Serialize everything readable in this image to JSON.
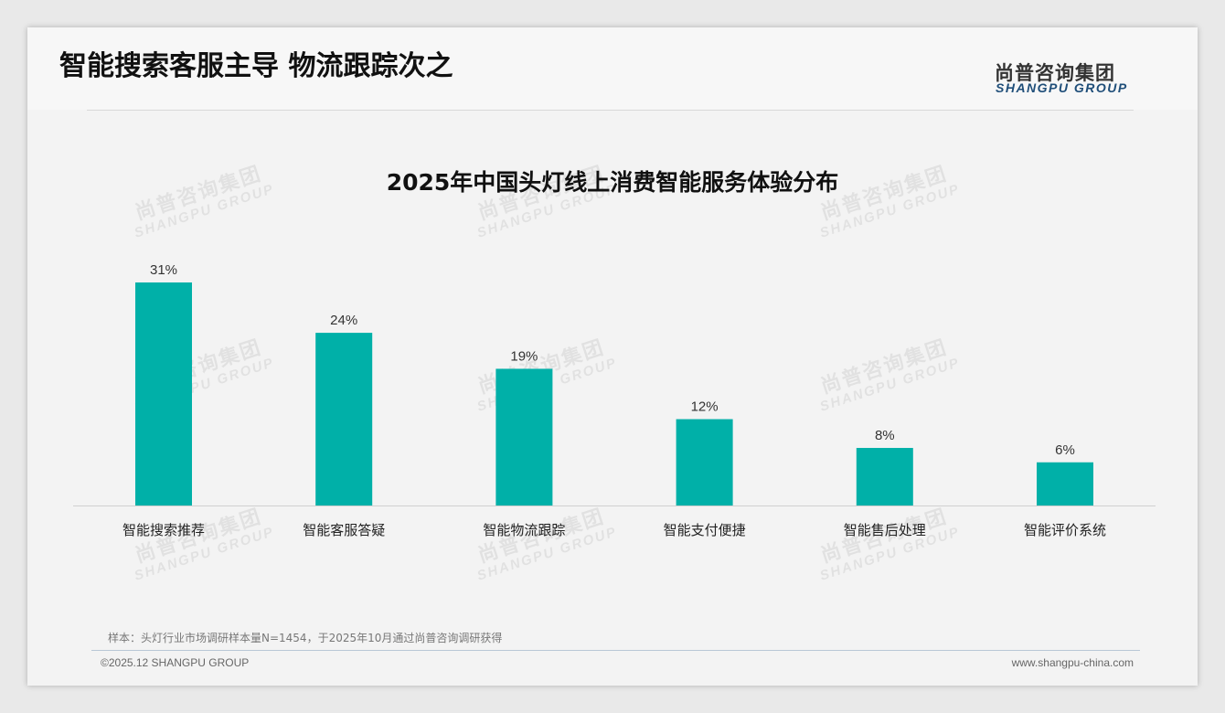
{
  "page_title": "智能搜索客服主导 物流跟踪次之",
  "logo": {
    "cn": "尚普咨询集团",
    "en": "SHANGPU GROUP"
  },
  "watermark": {
    "cn": "尚普咨询集团",
    "en": "SHANGPU GROUP"
  },
  "footer": {
    "note": "样本：头灯行业市场调研样本量N=1454，于2025年10月通过尚普咨询调研获得",
    "copyright": "©2025.12 SHANGPU GROUP",
    "url": "www.shangpu-china.com"
  },
  "colors": {
    "bar": "#00B0A8"
  },
  "chart_data": {
    "type": "bar",
    "title": "2025年中国头灯线上消费智能服务体验分布",
    "categories": [
      "智能搜索推荐",
      "智能客服答疑",
      "智能物流跟踪",
      "智能支付便捷",
      "智能售后处理",
      "智能评价系统"
    ],
    "values": [
      31,
      24,
      19,
      12,
      8,
      6
    ],
    "labels": [
      "31%",
      "24%",
      "19%",
      "12%",
      "8%",
      "6%"
    ],
    "unit": "%",
    "xlabel": "",
    "ylabel": "",
    "ylim": [
      0,
      31
    ],
    "grid": false,
    "legend": "none"
  }
}
